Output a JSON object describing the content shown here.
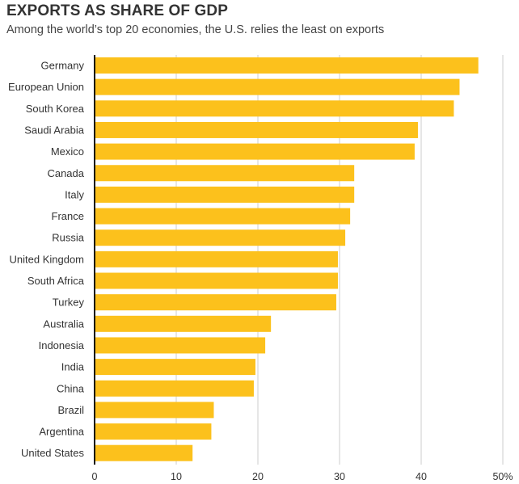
{
  "chart_data": {
    "type": "bar",
    "orientation": "horizontal",
    "title": "EXPORTS AS SHARE OF GDP",
    "subtitle": "Among the world’s top 20 economies, the U.S. relies the least on exports",
    "categories": [
      "Germany",
      "European Union",
      "South Korea",
      "Saudi Arabia",
      "Mexico",
      "Canada",
      "Italy",
      "France",
      "Russia",
      "United Kingdom",
      "South Africa",
      "Turkey",
      "Australia",
      "Indonesia",
      "India",
      "China",
      "Brazil",
      "Argentina",
      "United States"
    ],
    "values": [
      47.0,
      44.7,
      44.0,
      39.6,
      39.2,
      31.8,
      31.8,
      31.3,
      30.7,
      29.8,
      29.8,
      29.6,
      21.6,
      20.9,
      19.7,
      19.5,
      14.6,
      14.3,
      12.0
    ],
    "xlim": [
      0,
      50
    ],
    "xticks": [
      0,
      10,
      20,
      30,
      40,
      50
    ],
    "xtick_labels": [
      "0",
      "10",
      "20",
      "30",
      "40",
      "50%"
    ],
    "grid": true,
    "bar_color": "#fcc11c",
    "grid_color": "#cccccc",
    "axis_color": "#111111"
  }
}
